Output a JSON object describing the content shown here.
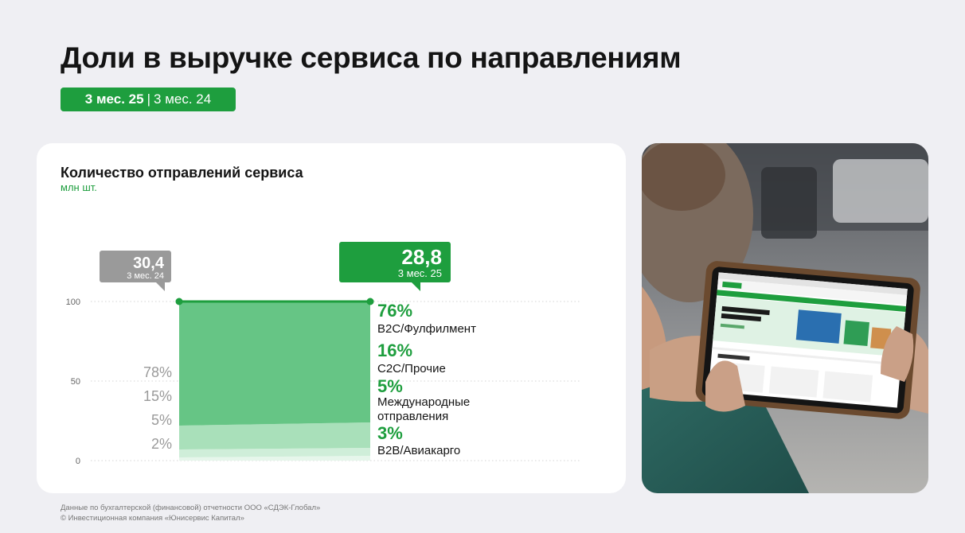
{
  "page": {
    "title": "Доли в выручке сервиса по направлениям",
    "period_active": "3 мес. 25",
    "period_separator": "|",
    "period_inactive": "3 мес. 24"
  },
  "colors": {
    "accent": "#1e9e3e",
    "grey_badge": "#9a9a9a",
    "series_b2c": "#66c585",
    "series_c2c": "#a9e0ba",
    "series_intl": "#cfeed9",
    "series_b2b": "#e6f6eb"
  },
  "chart_data": {
    "type": "area",
    "title": "Количество отправлений сервиса",
    "ylabel": "млн шт.",
    "ylim": [
      0,
      100
    ],
    "yticks": [
      "0",
      "50",
      "100"
    ],
    "grid": true,
    "x": [
      "3 мес. 24",
      "3 мес. 25"
    ],
    "totals": [
      {
        "value": "30,4",
        "label": "3 мес. 24"
      },
      {
        "value": "28,8",
        "label": "3 мес. 25"
      }
    ],
    "series": [
      {
        "name": "B2B/Авиакарго",
        "values": [
          2,
          3
        ],
        "label_left": "2%",
        "label_right": "3%"
      },
      {
        "name": "Международные отправления",
        "values": [
          5,
          5
        ],
        "label_left": "5%",
        "label_right": "5%"
      },
      {
        "name": "C2C/Прочие",
        "values": [
          15,
          16
        ],
        "label_left": "15%",
        "label_right": "16%"
      },
      {
        "name": "B2C/Фулфилмент",
        "values": [
          78,
          76
        ],
        "label_left": "78%",
        "label_right": "76%"
      }
    ],
    "right_labels": [
      {
        "pct": "76%",
        "name": "B2C/Фулфилмент"
      },
      {
        "pct": "16%",
        "name": "C2C/Прочие"
      },
      {
        "pct": "5%",
        "name": "Международные\nотправления"
      },
      {
        "pct": "3%",
        "name": "B2B/Авиакарго"
      }
    ]
  },
  "footer": {
    "line1": "Данные по бухгалтерской (финансовой) отчетности ООО «СДЭК-Глобал»",
    "line2": "© Инвестиционная компания «Юнисервис Капитал»"
  }
}
